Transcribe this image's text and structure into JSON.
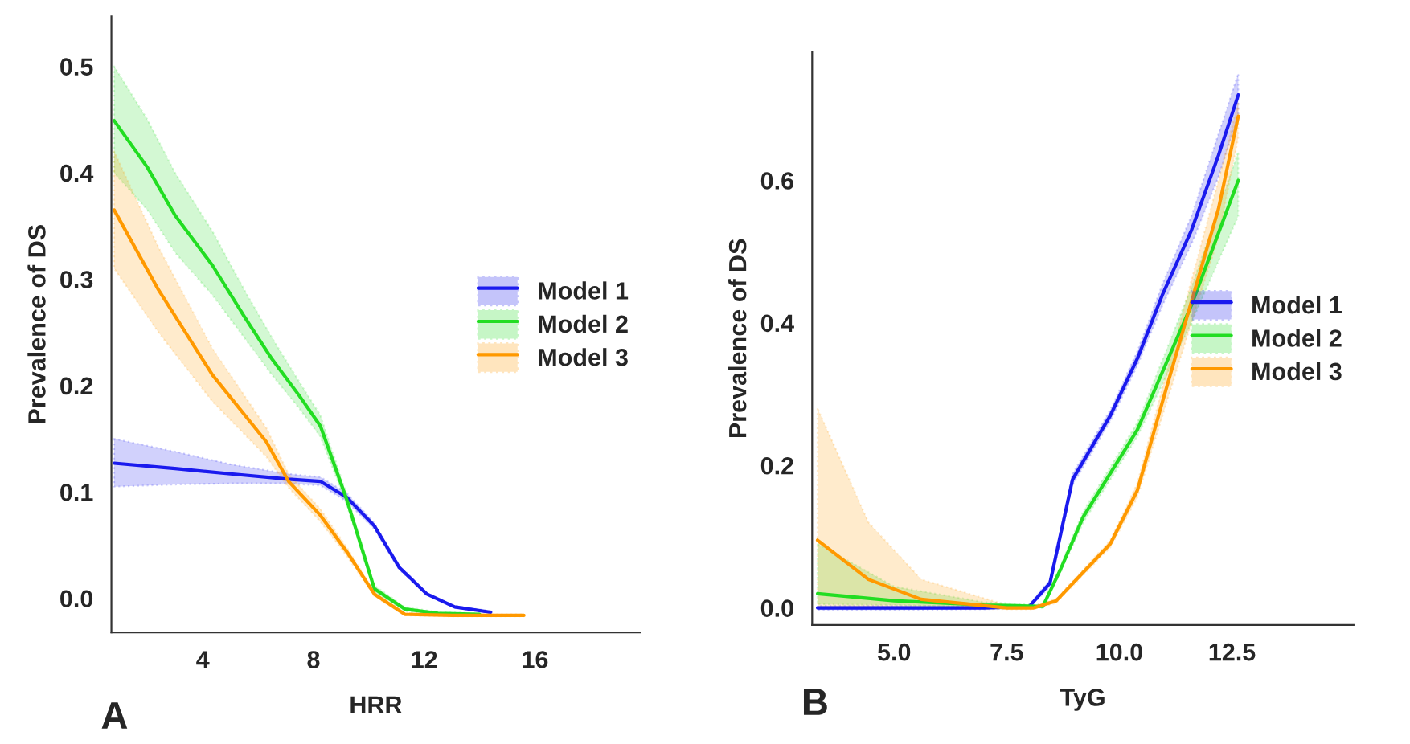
{
  "chart_data": [
    {
      "type": "line",
      "xlabel": "HRR",
      "ylabel": "Prevalence of DS",
      "annotations": [
        "A"
      ],
      "xlim": [
        0.7,
        19.8
      ],
      "xticks": [
        4,
        8,
        12,
        16
      ],
      "ylim": [
        -0.032,
        0.547
      ],
      "yticks": [
        {
          "value": 0,
          "label": "0.0"
        },
        0.1,
        0.2,
        0.3,
        0.4,
        0.5
      ],
      "grid": false,
      "legend": "right",
      "series": [
        {
          "name": "Model 1",
          "color": "#1a1aee",
          "x": [
            0.8,
            3,
            5,
            7.1,
            8.25,
            9.2,
            10.2,
            11.1,
            12.1,
            13.1,
            14.4
          ],
          "values": [
            0.127,
            0.122,
            0.117,
            0.112,
            0.11,
            0.095,
            0.068,
            0.029,
            0.004,
            -0.008,
            -0.013
          ],
          "lower": [
            0.105,
            0.107,
            0.108,
            0.108,
            0.106,
            0.091,
            0.065,
            0.027,
            0.003,
            -0.009,
            -0.014
          ],
          "upper": [
            0.15,
            0.138,
            0.126,
            0.117,
            0.114,
            0.099,
            0.071,
            0.031,
            0.005,
            -0.007,
            -0.012
          ]
        },
        {
          "name": "Model 2",
          "color": "#22dd22",
          "x": [
            0.8,
            2,
            3,
            4.35,
            5.5,
            6.5,
            7.5,
            8.25,
            9.2,
            10.2,
            11.3,
            12.5,
            14
          ],
          "values": [
            0.449,
            0.405,
            0.36,
            0.313,
            0.265,
            0.225,
            0.19,
            0.162,
            0.093,
            0.009,
            -0.01,
            -0.014,
            -0.015
          ],
          "lower": [
            0.4,
            0.365,
            0.325,
            0.285,
            0.245,
            0.21,
            0.178,
            0.152,
            0.088,
            0.006,
            -0.012,
            -0.015,
            -0.016
          ],
          "upper": [
            0.5,
            0.45,
            0.4,
            0.345,
            0.29,
            0.245,
            0.203,
            0.172,
            0.098,
            0.012,
            -0.008,
            -0.013,
            -0.014
          ]
        },
        {
          "name": "Model 3",
          "color": "#ff9900",
          "x": [
            0.8,
            2.4,
            4.35,
            6.3,
            7.1,
            8.25,
            9.2,
            10.2,
            11.3,
            13,
            15.6
          ],
          "values": [
            0.365,
            0.29,
            0.21,
            0.147,
            0.11,
            0.078,
            0.044,
            0.004,
            -0.015,
            -0.016,
            -0.016
          ],
          "lower": [
            0.31,
            0.25,
            0.185,
            0.133,
            0.104,
            0.072,
            0.04,
            0.002,
            -0.016,
            -0.017,
            -0.017
          ],
          "upper": [
            0.42,
            0.33,
            0.235,
            0.16,
            0.117,
            0.084,
            0.048,
            0.006,
            -0.014,
            -0.015,
            -0.015
          ]
        }
      ]
    },
    {
      "type": "line",
      "xlabel": "TyG",
      "ylabel": "Prevalence of DS",
      "annotations": [
        "B"
      ],
      "xlim": [
        3.18,
        15.2
      ],
      "xticks": [
        {
          "value": 5,
          "label": "5.0"
        },
        7.5,
        {
          "value": 10,
          "label": "10.0"
        },
        12.5
      ],
      "ylim": [
        -0.024,
        0.78
      ],
      "yticks": [
        {
          "value": 0,
          "label": "0.0"
        },
        0.2,
        0.4,
        0.6
      ],
      "grid": false,
      "legend": "right",
      "series": [
        {
          "name": "Model 1",
          "color": "#1a1aee",
          "x": [
            3.3,
            5,
            7,
            8.0,
            8.46,
            8.96,
            9.8,
            10.4,
            10.96,
            11.6,
            12.2,
            12.64
          ],
          "values": [
            0.0,
            0.0,
            0.0,
            0.002,
            0.035,
            0.18,
            0.27,
            0.35,
            0.44,
            0.53,
            0.635,
            0.72
          ],
          "lower": [
            -0.003,
            -0.003,
            -0.002,
            0.0,
            0.03,
            0.172,
            0.262,
            0.34,
            0.425,
            0.51,
            0.605,
            0.69
          ],
          "upper": [
            0.003,
            0.003,
            0.002,
            0.004,
            0.04,
            0.188,
            0.278,
            0.36,
            0.455,
            0.55,
            0.665,
            0.75
          ]
        },
        {
          "name": "Model 2",
          "color": "#22dd22",
          "x": [
            3.3,
            5,
            7,
            8.3,
            8.7,
            9.2,
            10.4,
            11.6,
            12.64
          ],
          "values": [
            0.02,
            0.01,
            0.004,
            0.002,
            0.055,
            0.128,
            0.25,
            0.425,
            0.6
          ],
          "lower": [
            0.005,
            0.004,
            0.001,
            0.0,
            0.05,
            0.12,
            0.24,
            0.4,
            0.55
          ],
          "upper": [
            0.09,
            0.03,
            0.008,
            0.004,
            0.06,
            0.136,
            0.26,
            0.45,
            0.64
          ]
        },
        {
          "name": "Model 3",
          "color": "#ff9900",
          "x": [
            3.3,
            4.43,
            5.6,
            7.5,
            8.1,
            8.6,
            9.8,
            10.4,
            10.96,
            11.6,
            12.2,
            12.64
          ],
          "values": [
            0.095,
            0.04,
            0.012,
            0.0,
            0.0,
            0.01,
            0.09,
            0.165,
            0.29,
            0.43,
            0.56,
            0.69
          ],
          "lower": [
            0.0,
            0.0,
            0.0,
            -0.002,
            -0.002,
            0.007,
            0.085,
            0.155,
            0.27,
            0.4,
            0.52,
            0.66
          ],
          "upper": [
            0.28,
            0.12,
            0.04,
            0.004,
            0.003,
            0.013,
            0.095,
            0.175,
            0.31,
            0.46,
            0.6,
            0.71
          ]
        }
      ]
    }
  ]
}
